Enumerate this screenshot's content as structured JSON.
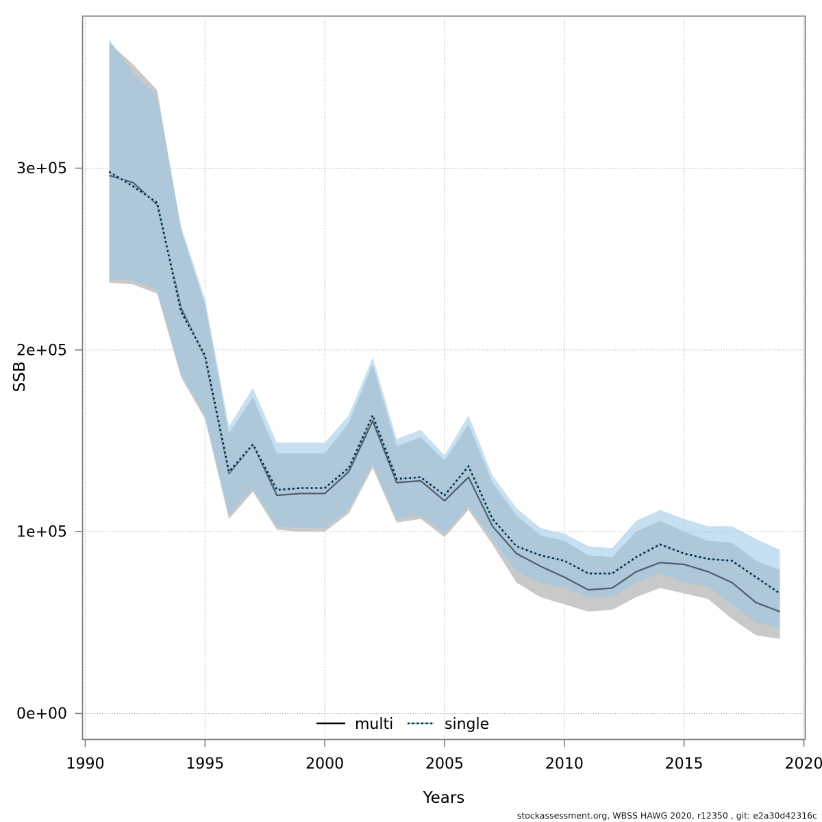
{
  "chart_data": {
    "type": "line",
    "title": "",
    "xlabel": "Years",
    "ylabel": "SSB",
    "grid": true,
    "legend_position": "bottom-center-inside",
    "xlim": [
      1989.886,
      2020.057
    ],
    "ylim": [
      -14320,
      383670
    ],
    "x_ticks": [
      {
        "value": 1990,
        "label": "1990"
      },
      {
        "value": 1995,
        "label": "1995"
      },
      {
        "value": 2000,
        "label": "2000"
      },
      {
        "value": 2005,
        "label": "2005"
      },
      {
        "value": 2010,
        "label": "2010"
      },
      {
        "value": 2015,
        "label": "2015"
      },
      {
        "value": 2020,
        "label": "2020"
      }
    ],
    "y_ticks": [
      {
        "value": 0,
        "label": "0e+00"
      },
      {
        "value": 100000,
        "label": "1e+05"
      },
      {
        "value": 200000,
        "label": "2e+05"
      },
      {
        "value": 300000,
        "label": "3e+05"
      }
    ],
    "years": [
      1991,
      1992,
      1993,
      1994,
      1995,
      1996,
      1997,
      1998,
      1999,
      2000,
      2001,
      2002,
      2003,
      2004,
      2005,
      2006,
      2007,
      2008,
      2009,
      2010,
      2011,
      2012,
      2013,
      2014,
      2015,
      2016,
      2017,
      2018,
      2019
    ],
    "series": [
      {
        "name": "multi",
        "line_style": "solid",
        "legend_line_color": "#000000",
        "plot_line_color": "#4E5D66",
        "band_color": "#C9C9C9",
        "values": [
          296000,
          292000,
          280000,
          223000,
          196000,
          132000,
          148000,
          120000,
          121000,
          121000,
          133000,
          161000,
          127000,
          128000,
          117000,
          130000,
          103000,
          88000,
          81000,
          75000,
          68000,
          69000,
          78000,
          83000,
          82000,
          78000,
          72000,
          61000,
          56000
        ],
        "lower": [
          237000,
          236000,
          231000,
          185000,
          162000,
          107000,
          122000,
          101000,
          100000,
          100000,
          110000,
          135000,
          105000,
          107000,
          97000,
          112000,
          93000,
          72000,
          64000,
          60000,
          56000,
          57000,
          64000,
          69000,
          66000,
          63000,
          52000,
          43000,
          41000
        ],
        "upper": [
          369000,
          357000,
          343000,
          266000,
          225000,
          154000,
          174000,
          143000,
          143000,
          143000,
          160000,
          192000,
          147000,
          152000,
          139000,
          159000,
          127000,
          109000,
          98000,
          95000,
          87000,
          86000,
          100000,
          106000,
          100000,
          95000,
          94000,
          84000,
          79000
        ]
      },
      {
        "name": "single",
        "line_style": "dotted",
        "legend_line_color": "#85BFE4",
        "plot_line_color": "#85BFE4",
        "dash_color": "#101010",
        "band_color": "rgba(151,199,231,0.55)",
        "values": [
          298000,
          290000,
          281000,
          221000,
          197000,
          133000,
          148000,
          123000,
          124000,
          124000,
          135000,
          164000,
          129000,
          130000,
          120000,
          136000,
          107000,
          92000,
          87000,
          84000,
          77000,
          77000,
          86000,
          93000,
          88000,
          85000,
          84000,
          75000,
          66000
        ],
        "lower": [
          239000,
          238000,
          233000,
          187000,
          164000,
          109000,
          124000,
          103000,
          102000,
          102000,
          112000,
          137000,
          107000,
          109000,
          99000,
          114000,
          96000,
          78000,
          72000,
          69000,
          64000,
          64000,
          72000,
          77000,
          72000,
          70000,
          60000,
          50000,
          47000
        ],
        "upper": [
          371000,
          352000,
          340000,
          268000,
          228000,
          158000,
          179000,
          149000,
          149000,
          149000,
          164000,
          196000,
          151000,
          156000,
          142000,
          164000,
          131000,
          113000,
          102000,
          99000,
          92000,
          91000,
          106000,
          112000,
          107000,
          103000,
          103000,
          96000,
          90000
        ]
      }
    ],
    "legend": [
      {
        "label": "multi"
      },
      {
        "label": "single"
      }
    ],
    "footer": "stockassessment.org, WBSS HAWG 2020, r12350 , git: e2a30d42316c",
    "colors": {
      "frame": "#7F7F7F",
      "grid": "#8C8C8C",
      "tick": "#7F7F7F"
    }
  }
}
